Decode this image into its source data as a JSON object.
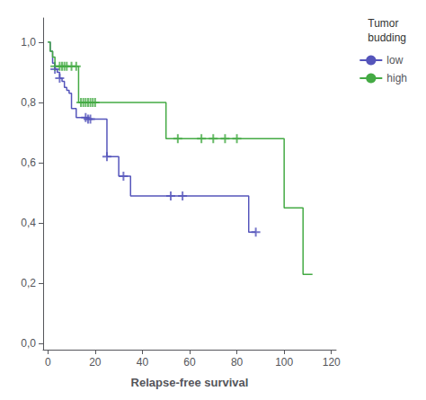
{
  "chart_data": {
    "type": "line",
    "xlabel": "Relapse-free survival",
    "legend_title": "Tumor\nbudding",
    "xlim": [
      -2,
      122
    ],
    "ylim": [
      -0.02,
      1.08
    ],
    "xticks": [
      0,
      20,
      40,
      60,
      80,
      100,
      120
    ],
    "yticks": [
      {
        "value": 0.0,
        "label": "0,0"
      },
      {
        "value": 0.2,
        "label": "0,2"
      },
      {
        "value": 0.4,
        "label": "0,4"
      },
      {
        "value": 0.6,
        "label": "0,6"
      },
      {
        "value": 0.8,
        "label": "0,8"
      },
      {
        "value": 1.0,
        "label": "1,0"
      }
    ],
    "grid": false,
    "legend": "right",
    "series": [
      {
        "name": "low",
        "type": "line",
        "line_style": "step",
        "color": "#5555bb",
        "x": [
          0,
          1,
          2,
          3,
          4,
          5,
          6,
          7,
          8,
          9,
          10,
          12,
          14,
          16,
          17,
          18,
          20,
          25,
          30,
          32,
          35,
          38,
          50,
          52,
          55,
          57,
          85,
          88
        ],
        "values": [
          1.0,
          0.97,
          0.93,
          0.91,
          0.9,
          0.88,
          0.87,
          0.85,
          0.84,
          0.83,
          0.78,
          0.75,
          0.75,
          0.75,
          0.745,
          0.745,
          0.745,
          0.62,
          0.555,
          0.555,
          0.49,
          0.49,
          0.49,
          0.49,
          0.49,
          0.49,
          0.37,
          0.37
        ]
      },
      {
        "name": "high",
        "type": "line",
        "line_style": "step",
        "color": "#44aa44",
        "x": [
          0,
          1,
          2,
          3,
          5,
          6,
          7,
          8,
          10,
          12,
          13,
          14,
          15,
          16,
          17,
          18,
          19,
          20,
          35,
          50,
          55,
          57,
          65,
          70,
          75,
          80,
          100,
          108,
          112
        ],
        "values": [
          1.0,
          0.97,
          0.95,
          0.92,
          0.92,
          0.92,
          0.92,
          0.92,
          0.92,
          0.92,
          0.8,
          0.8,
          0.8,
          0.8,
          0.8,
          0.8,
          0.8,
          0.8,
          0.8,
          0.68,
          0.68,
          0.68,
          0.68,
          0.68,
          0.68,
          0.68,
          0.45,
          0.23,
          0.23
        ]
      },
      {
        "type": "scatter",
        "marker": "+",
        "color": "#5555bb",
        "x": [
          3,
          5,
          16,
          17,
          18,
          25,
          32,
          52,
          57,
          88
        ],
        "values": [
          0.91,
          0.88,
          0.75,
          0.745,
          0.745,
          0.62,
          0.555,
          0.49,
          0.49,
          0.37
        ]
      },
      {
        "type": "scatter",
        "marker": "+",
        "color": "#44aa44",
        "x": [
          3,
          5,
          6,
          7,
          8,
          10,
          12,
          14,
          15,
          16,
          17,
          18,
          19,
          20,
          55,
          65,
          70,
          75,
          80
        ],
        "values": [
          0.92,
          0.92,
          0.92,
          0.92,
          0.92,
          0.92,
          0.92,
          0.8,
          0.8,
          0.8,
          0.8,
          0.8,
          0.8,
          0.8,
          0.68,
          0.68,
          0.68,
          0.68,
          0.68
        ]
      }
    ]
  }
}
